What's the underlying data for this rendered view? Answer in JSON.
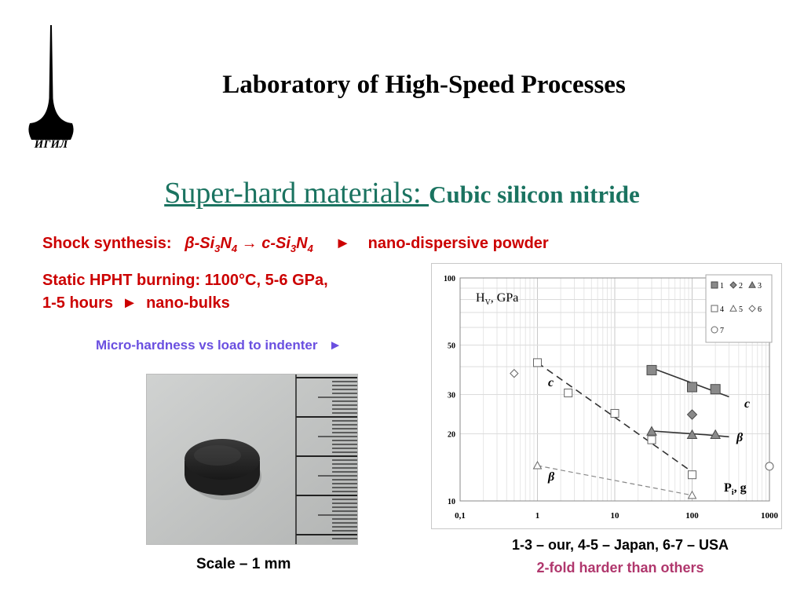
{
  "header": {
    "title": "Laboratory of High-Speed Processes",
    "logo_text": "ИГИЛ"
  },
  "subtitle": {
    "main": "Super-hard materials: ",
    "rest": "Cubic silicon nitride"
  },
  "synthesis": {
    "label": "Shock synthesis:",
    "formula_beta": "β-Si",
    "sub1": "3",
    "n1": "N",
    "sub2": "4",
    "arrow": "→",
    "formula_c": "c-Si",
    "sub3": "3",
    "n2": "N",
    "sub4": "4",
    "pointer": "►",
    "product": "nano-dispersive powder"
  },
  "hpht": {
    "line1": "Static HPHT burning: 1100°C, 5-6 GPa,",
    "line2_a": "1-5 hours",
    "pointer": "►",
    "line2_b": "nano-bulks"
  },
  "hardness_label": "Micro-hardness vs load to indenter",
  "hardness_pointer": "►",
  "photo": {
    "caption": "Scale – 1 mm"
  },
  "notes": {
    "legend": "1-3 – our, 4-5 – Japan, 6-7 – USA",
    "harder": "2-fold harder than others"
  },
  "chart_data": {
    "type": "scatter",
    "x_scale": "log",
    "y_scale": "log",
    "xlim": [
      0.1,
      1000
    ],
    "ylim": [
      10,
      100
    ],
    "xticks": [
      "0,1",
      "1",
      "10",
      "100",
      "1000"
    ],
    "yticks": [
      "10",
      "20",
      "30",
      "50",
      "100"
    ],
    "ylabel_main": "H",
    "ylabel_sub": "V",
    "ylabel_unit": ", GPa",
    "xlabel_main": "P",
    "xlabel_sub": "i",
    "xlabel_unit": ", g",
    "grid": true,
    "legend_position": "top-right",
    "legend": [
      "1",
      "2",
      "3",
      "4",
      "5",
      "6",
      "7"
    ],
    "series": [
      {
        "name": "1",
        "marker": "square-filled",
        "points": [
          [
            30,
            38.6
          ],
          [
            100,
            32.4
          ],
          [
            200,
            31.7
          ]
        ]
      },
      {
        "name": "2",
        "marker": "diamond-filled",
        "points": [
          [
            100,
            24.4
          ]
        ]
      },
      {
        "name": "3",
        "marker": "triangle-filled",
        "points": [
          [
            30,
            20.5
          ],
          [
            100,
            19.8
          ],
          [
            200,
            19.8
          ]
        ]
      },
      {
        "name": "4",
        "marker": "square-open",
        "points": [
          [
            1,
            41.7
          ],
          [
            2.5,
            30.5
          ],
          [
            10,
            24.7
          ],
          [
            30,
            18.8
          ],
          [
            100,
            13.1
          ]
        ]
      },
      {
        "name": "5",
        "marker": "triangle-open",
        "points": [
          [
            1,
            14.4
          ],
          [
            100,
            10.6
          ]
        ]
      },
      {
        "name": "6",
        "marker": "diamond-open",
        "points": [
          [
            0.5,
            37.3
          ]
        ]
      },
      {
        "name": "7",
        "marker": "circle-open",
        "points": [
          [
            1000,
            14.3
          ]
        ]
      }
    ],
    "trend_lines": [
      {
        "label": "c",
        "style": "solid",
        "points": [
          [
            30,
            39.5
          ],
          [
            300,
            29.3
          ]
        ]
      },
      {
        "label": "β",
        "style": "solid",
        "points": [
          [
            30,
            20.6
          ],
          [
            150,
            19.8
          ],
          [
            300,
            19.4
          ]
        ]
      },
      {
        "label": "c",
        "style": "dashed",
        "points": [
          [
            1,
            41.7
          ],
          [
            100,
            13.5
          ]
        ]
      },
      {
        "label": "β",
        "style": "dashed",
        "points": [
          [
            1,
            14.4
          ],
          [
            100,
            10.6
          ]
        ]
      }
    ]
  }
}
